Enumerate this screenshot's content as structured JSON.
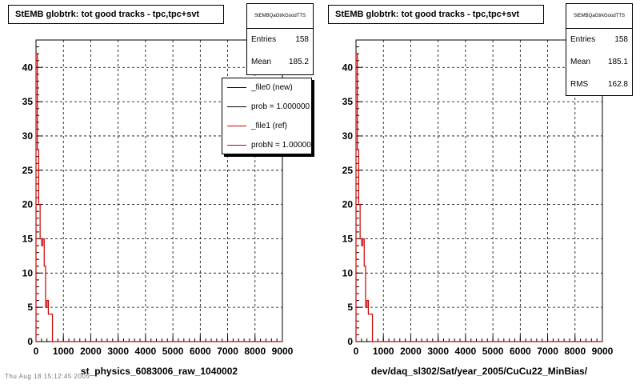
{
  "colors": {
    "new": "#000000",
    "ref": "#cc0000",
    "grid": "#000000",
    "frame": "#000000"
  },
  "pads": [
    {
      "title": "StEMB globtrk: tot good tracks - tpc,tpc+svt",
      "xlabel": "st_physics_6083006_raw_1040002",
      "stats": {
        "name": "StEMBQaGtrkGoodTTS",
        "rows": [
          {
            "label": "Entries",
            "value": "158"
          },
          {
            "label": "Mean",
            "value": "185.2"
          }
        ]
      },
      "legend": {
        "items": [
          {
            "label": "_file0 (new)",
            "color": "#000000"
          },
          {
            "label": "prob = 1.000000",
            "color": "#000000"
          },
          {
            "label": "_file1 (ref)",
            "color": "#cc0000"
          },
          {
            "label": "probN = 1.000000",
            "color": "#cc0000"
          }
        ]
      }
    },
    {
      "title": "StEMB globtrk: tot good tracks - tpc,tpc+svt",
      "xlabel": "dev/daq_sl302/Sat/year_2005/CuCu22_MinBias/",
      "stats": {
        "name": "StEMBQaGtrkGoodTTS",
        "rows": [
          {
            "label": "Entries",
            "value": "158"
          },
          {
            "label": "Mean",
            "value": "185.1"
          },
          {
            "label": "RMS",
            "value": "162.8"
          }
        ]
      }
    }
  ],
  "footer": "Thu Aug 18 15:12:45 2005",
  "chart_data": [
    {
      "type": "line",
      "style": "step histogram",
      "title": "StEMB globtrk: tot good tracks - tpc,tpc+svt",
      "xlabel": "st_physics_6083006_raw_1040002",
      "ylabel": "",
      "xlim": [
        0,
        9000
      ],
      "ylim": [
        0,
        44
      ],
      "xticks": [
        0,
        1000,
        2000,
        3000,
        4000,
        5000,
        6000,
        7000,
        8000,
        9000
      ],
      "yticks": [
        0,
        5,
        10,
        15,
        20,
        25,
        30,
        35,
        40
      ],
      "grid": true,
      "legend": "top-right",
      "series": [
        {
          "name": "_file1 (ref)",
          "bin_edges": [
            0,
            50,
            100,
            150,
            200,
            250,
            300,
            350,
            400,
            450,
            500,
            550,
            600,
            650,
            700,
            9000
          ],
          "values": [
            42,
            28,
            20,
            15,
            14,
            15,
            11,
            5,
            6,
            4,
            4,
            4,
            0,
            0,
            0
          ]
        }
      ]
    },
    {
      "type": "line",
      "style": "step histogram",
      "title": "StEMB globtrk: tot good tracks - tpc,tpc+svt",
      "xlabel": "dev/daq_sl302/Sat/year_2005/CuCu22_MinBias/",
      "ylabel": "",
      "xlim": [
        0,
        9000
      ],
      "ylim": [
        0,
        44
      ],
      "xticks": [
        0,
        1000,
        2000,
        3000,
        4000,
        5000,
        6000,
        7000,
        8000,
        9000
      ],
      "yticks": [
        0,
        5,
        10,
        15,
        20,
        25,
        30,
        35,
        40
      ],
      "grid": true,
      "series": [
        {
          "name": "",
          "bin_edges": [
            0,
            50,
            100,
            150,
            200,
            250,
            300,
            350,
            400,
            450,
            500,
            550,
            600,
            650,
            700,
            9000
          ],
          "values": [
            42,
            28,
            20,
            15,
            14,
            15,
            11,
            5,
            6,
            4,
            4,
            4,
            0,
            0,
            0
          ]
        }
      ]
    }
  ]
}
